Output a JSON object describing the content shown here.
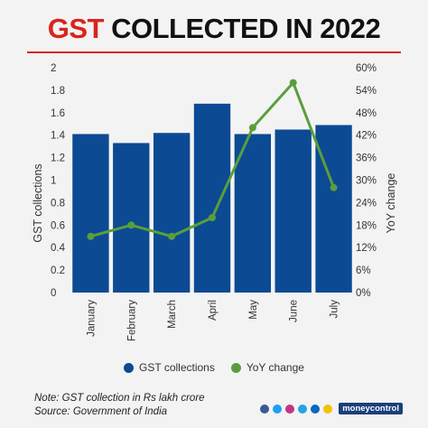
{
  "title": {
    "part1": "GST",
    "part2": " COLLECTED IN 2022"
  },
  "legend": {
    "bars": "GST collections",
    "line": "YoY change"
  },
  "note": {
    "line1": "Note: GST collection in Rs lakh crore",
    "line2": "Source: Government of India"
  },
  "brand": {
    "name": "moneycontrol",
    "social_icons": [
      "facebook-icon",
      "twitter-icon",
      "instagram-icon",
      "telegram-icon",
      "linkedin-icon",
      "koo-icon"
    ]
  },
  "colors": {
    "bar": "#0c4a93",
    "line": "#5a9e3c",
    "title_accent": "#d9241d"
  },
  "chart_data": {
    "type": "bar",
    "categories": [
      "January",
      "February",
      "March",
      "April",
      "May",
      "June",
      "July"
    ],
    "series": [
      {
        "name": "GST collections",
        "type": "bar",
        "axis": "left",
        "values": [
          1.41,
          1.33,
          1.42,
          1.68,
          1.41,
          1.45,
          1.49
        ]
      },
      {
        "name": "YoY change",
        "type": "line",
        "axis": "right",
        "values": [
          15,
          18,
          15,
          20,
          44,
          56,
          28
        ]
      }
    ],
    "ylabel": "GST collections",
    "y2label": "YoY change",
    "ylim": [
      0,
      2
    ],
    "y2lim": [
      0,
      60
    ],
    "yticks": [
      "0",
      "0.2",
      "0.4",
      "0.6",
      "0.8",
      "1",
      "1.2",
      "1.4",
      "1.6",
      "1.8",
      "2"
    ],
    "y2ticks": [
      "0%",
      "6%",
      "12%",
      "18%",
      "24%",
      "30%",
      "36%",
      "42%",
      "48%",
      "54%",
      "60%"
    ],
    "legend_position": "bottom"
  }
}
